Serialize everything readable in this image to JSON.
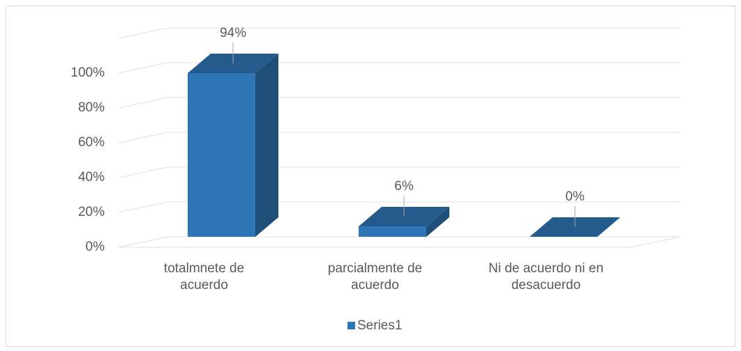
{
  "chart_data": {
    "type": "bar3d",
    "categories": [
      "totalmnete de acuerdo",
      "parcialmente de acuerdo",
      "Ni de acuerdo ni en desacuerdo"
    ],
    "series": [
      {
        "name": "Series1",
        "color": "#2e75b6",
        "values": [
          94,
          6,
          0
        ],
        "value_labels": [
          "94%",
          "6%",
          "0%"
        ]
      }
    ],
    "ylim": [
      0,
      120
    ],
    "yticks": [
      {
        "value": 0,
        "label": "0%"
      },
      {
        "value": 20,
        "label": "20%"
      },
      {
        "value": 40,
        "label": "40%"
      },
      {
        "value": 60,
        "label": "60%"
      },
      {
        "value": 80,
        "label": "80%"
      },
      {
        "value": 100,
        "label": "100%"
      }
    ],
    "grid": true,
    "legend": "bottom"
  }
}
